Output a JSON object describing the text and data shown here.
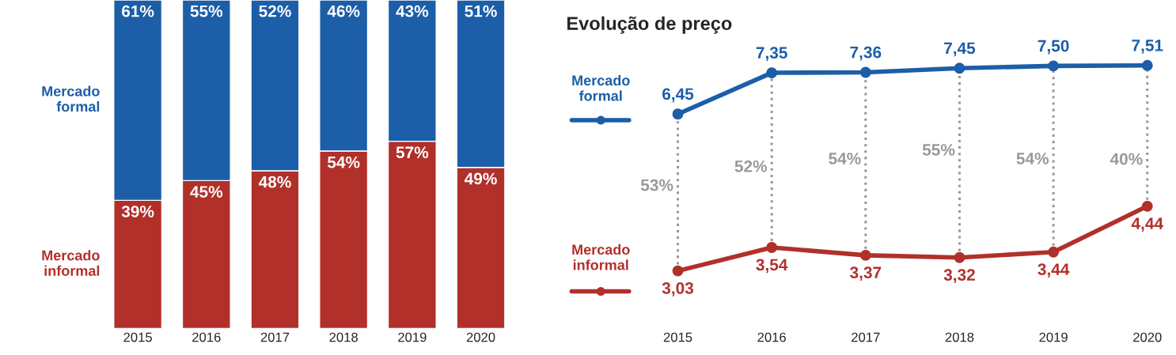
{
  "chart_data": [
    {
      "type": "bar",
      "stacked": true,
      "categories": [
        "2015",
        "2016",
        "2017",
        "2018",
        "2019",
        "2020"
      ],
      "tick_labels": "x",
      "grid": false,
      "legend": false,
      "series": [
        {
          "name": "Mercado informal",
          "color": "#b1302a",
          "values": [
            39,
            45,
            48,
            54,
            57,
            49
          ],
          "value_labels": [
            "39%",
            "45%",
            "48%",
            "54%",
            "57%",
            "49%"
          ]
        },
        {
          "name": "Mercado formal",
          "color": "#1c5ea8",
          "values": [
            61,
            55,
            52,
            46,
            43,
            51
          ],
          "value_labels": [
            "61%",
            "55%",
            "52%",
            "46%",
            "43%",
            "51%"
          ]
        }
      ]
    },
    {
      "type": "line",
      "title": "Evolução de preço",
      "categories": [
        "2015",
        "2016",
        "2017",
        "2018",
        "2019",
        "2020"
      ],
      "tick_labels": "x",
      "grid": false,
      "legend": false,
      "marker": "circle",
      "line_style": "solid",
      "series": [
        {
          "name": "Mercado formal",
          "color": "#1c5ea8",
          "values": [
            6.45,
            7.35,
            7.36,
            7.45,
            7.5,
            7.51
          ],
          "value_labels": [
            "6,45",
            "7,35",
            "7,36",
            "7,45",
            "7,50",
            "7,51"
          ]
        },
        {
          "name": "Mercado informal",
          "color": "#b1302a",
          "values": [
            3.03,
            3.54,
            3.37,
            3.32,
            3.44,
            4.44
          ],
          "value_labels": [
            "3,03",
            "3,54",
            "3,37",
            "3,32",
            "3,44",
            "4,44"
          ]
        }
      ],
      "ref_lines": [
        {
          "axis": "x",
          "value": "2015",
          "color": "#999999",
          "line_style": "dotted"
        },
        {
          "axis": "x",
          "value": "2016",
          "color": "#999999",
          "line_style": "dotted"
        },
        {
          "axis": "x",
          "value": "2017",
          "color": "#999999",
          "line_style": "dotted"
        },
        {
          "axis": "x",
          "value": "2018",
          "color": "#999999",
          "line_style": "dotted"
        },
        {
          "axis": "x",
          "value": "2019",
          "color": "#999999",
          "line_style": "dotted"
        },
        {
          "axis": "x",
          "value": "2020",
          "color": "#999999",
          "line_style": "dotted"
        }
      ],
      "annotations": [
        {
          "text": "53%",
          "x": "2015",
          "y": 4.87
        },
        {
          "text": "52%",
          "x": "2016",
          "y": 5.28
        },
        {
          "text": "54%",
          "x": "2017",
          "y": 5.45
        },
        {
          "text": "55%",
          "x": "2018",
          "y": 5.64
        },
        {
          "text": "54%",
          "x": "2019",
          "y": 5.45
        },
        {
          "text": "40%",
          "x": "2020",
          "y": 5.44
        }
      ]
    }
  ]
}
